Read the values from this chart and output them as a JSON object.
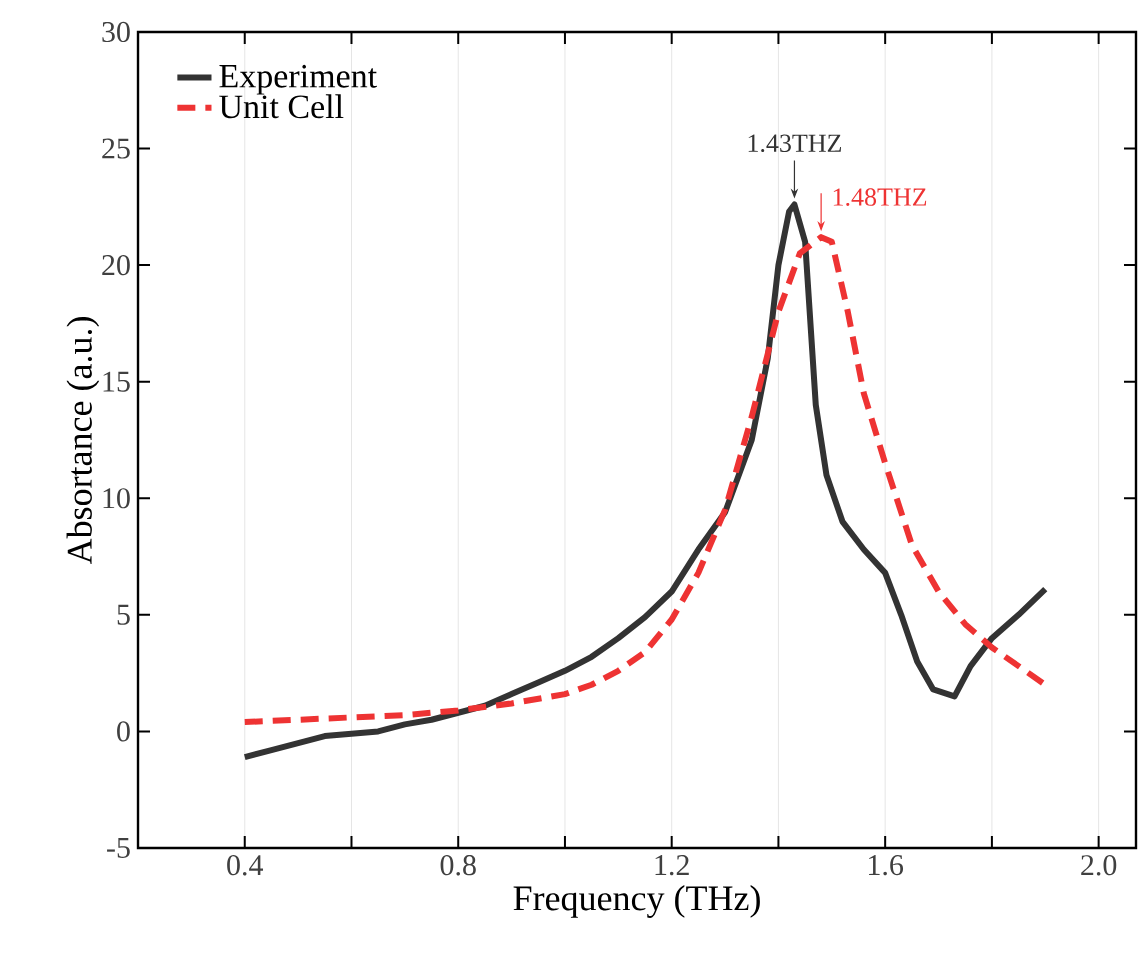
{
  "chart_data": {
    "type": "line",
    "xlabel": "Frequency (THz)",
    "ylabel": "Absortance (a.u.)",
    "xlim": [
      0.2,
      2.07
    ],
    "ylim": [
      -5,
      30
    ],
    "xticks": [
      {
        "value": 0.4,
        "label": "0.4"
      },
      {
        "value": 0.6,
        "label": null
      },
      {
        "value": 0.8,
        "label": "0.8"
      },
      {
        "value": 1.0,
        "label": null
      },
      {
        "value": 1.2,
        "label": "1.2"
      },
      {
        "value": 1.4,
        "label": null
      },
      {
        "value": 1.6,
        "label": "1.6"
      },
      {
        "value": 1.8,
        "label": null
      },
      {
        "value": 2.0,
        "label": "2.0"
      }
    ],
    "yticks": [
      -5,
      0,
      5,
      10,
      15,
      20,
      25,
      30
    ],
    "grid": "x",
    "legend": "top left",
    "series": [
      {
        "name": "Experiment",
        "color": "#333333",
        "line_style": "solid",
        "x": [
          0.4,
          0.45,
          0.5,
          0.55,
          0.6,
          0.65,
          0.7,
          0.75,
          0.8,
          0.85,
          0.9,
          0.95,
          1.0,
          1.05,
          1.1,
          1.15,
          1.2,
          1.25,
          1.3,
          1.35,
          1.38,
          1.4,
          1.42,
          1.43,
          1.45,
          1.47,
          1.49,
          1.52,
          1.56,
          1.6,
          1.63,
          1.66,
          1.69,
          1.73,
          1.76,
          1.8,
          1.85,
          1.9
        ],
        "values": [
          -1.1,
          -0.8,
          -0.5,
          -0.2,
          -0.1,
          0,
          0.3,
          0.5,
          0.8,
          1.1,
          1.6,
          2.1,
          2.6,
          3.2,
          4.0,
          4.9,
          6.0,
          7.8,
          9.4,
          12.5,
          16,
          20,
          22.3,
          22.6,
          21,
          14,
          11,
          9,
          7.8,
          6.8,
          5,
          3,
          1.8,
          1.5,
          2.8,
          4.0,
          5,
          6.1
        ]
      },
      {
        "name": "Unit Cell",
        "color": "#ee3333",
        "line_style": "dashed",
        "x": [
          0.4,
          0.5,
          0.6,
          0.7,
          0.8,
          0.9,
          1.0,
          1.05,
          1.1,
          1.15,
          1.2,
          1.25,
          1.3,
          1.35,
          1.4,
          1.44,
          1.48,
          1.5,
          1.53,
          1.56,
          1.6,
          1.65,
          1.7,
          1.75,
          1.8,
          1.85,
          1.9
        ],
        "values": [
          0.4,
          0.5,
          0.6,
          0.7,
          0.9,
          1.2,
          1.6,
          2.0,
          2.6,
          3.4,
          4.8,
          6.8,
          9.5,
          13.5,
          18,
          20.5,
          21.2,
          21,
          18,
          14.5,
          11.5,
          8,
          6,
          4.6,
          3.6,
          2.8,
          2.0
        ]
      }
    ],
    "annotations": [
      {
        "text": "1.43THZ",
        "x": 1.43,
        "y": 22.6
      },
      {
        "text": "1.48THZ",
        "x": 1.48,
        "y": 21.2
      }
    ]
  }
}
